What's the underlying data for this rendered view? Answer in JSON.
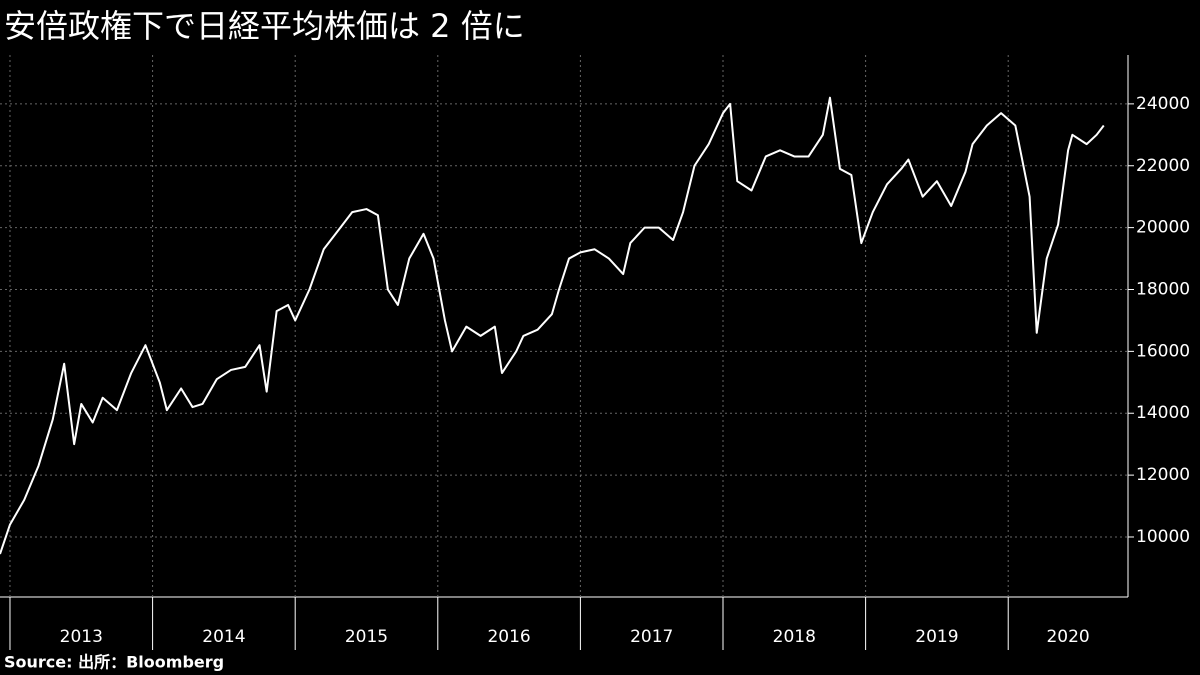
{
  "chart_data": {
    "type": "line",
    "title": "安倍政権下で日経平均株価は 2 倍に",
    "source": "Source: 出所：Bloomberg",
    "color": "#ffffff",
    "grid": true,
    "x": [
      2012.93,
      2013.0,
      2013.1,
      2013.2,
      2013.3,
      2013.38,
      2013.45,
      2013.5,
      2013.58,
      2013.65,
      2013.75,
      2013.85,
      2013.95,
      2014.05,
      2014.1,
      2014.2,
      2014.28,
      2014.35,
      2014.45,
      2014.55,
      2014.65,
      2014.75,
      2014.8,
      2014.87,
      2014.95,
      2015.0,
      2015.1,
      2015.2,
      2015.3,
      2015.4,
      2015.5,
      2015.58,
      2015.65,
      2015.72,
      2015.8,
      2015.9,
      2015.97,
      2016.05,
      2016.1,
      2016.2,
      2016.3,
      2016.4,
      2016.45,
      2016.55,
      2016.6,
      2016.7,
      2016.8,
      2016.85,
      2016.92,
      2017.0,
      2017.1,
      2017.2,
      2017.3,
      2017.35,
      2017.45,
      2017.55,
      2017.65,
      2017.72,
      2017.8,
      2017.9,
      2018.0,
      2018.05,
      2018.1,
      2018.2,
      2018.3,
      2018.4,
      2018.5,
      2018.6,
      2018.7,
      2018.75,
      2018.82,
      2018.9,
      2018.97,
      2019.05,
      2019.15,
      2019.25,
      2019.3,
      2019.4,
      2019.5,
      2019.6,
      2019.7,
      2019.75,
      2019.85,
      2019.95,
      2020.05,
      2020.15,
      2020.2,
      2020.27,
      2020.35,
      2020.42,
      2020.45,
      2020.55,
      2020.62,
      2020.67
    ],
    "values": [
      9450,
      10400,
      11200,
      12300,
      13800,
      15600,
      13000,
      14300,
      13700,
      14500,
      14100,
      15300,
      16200,
      15000,
      14100,
      14800,
      14200,
      14300,
      15100,
      15400,
      15500,
      16200,
      14700,
      17300,
      17500,
      17000,
      18000,
      19300,
      19900,
      20500,
      20600,
      20400,
      18000,
      17500,
      19000,
      19800,
      19000,
      17000,
      16000,
      16800,
      16500,
      16800,
      15300,
      16000,
      16500,
      16700,
      17200,
      18000,
      19000,
      19200,
      19300,
      19000,
      18500,
      19500,
      20000,
      20000,
      19600,
      20500,
      22000,
      22700,
      23700,
      24000,
      21500,
      21200,
      22300,
      22500,
      22300,
      22300,
      23000,
      24200,
      21900,
      21700,
      19500,
      20500,
      21400,
      21900,
      22200,
      21000,
      21500,
      20700,
      21800,
      22700,
      23300,
      23700,
      23300,
      21000,
      16600,
      19000,
      20100,
      22500,
      23000,
      22700,
      23000,
      23300
    ],
    "xlim": [
      2012.93,
      2020.84
    ],
    "xticks": [
      2013,
      2014,
      2015,
      2016,
      2017,
      2018,
      2019,
      2020
    ],
    "ylim": [
      8060,
      25580
    ],
    "yticks": [
      10000,
      12000,
      14000,
      16000,
      18000,
      20000,
      22000,
      24000
    ]
  }
}
